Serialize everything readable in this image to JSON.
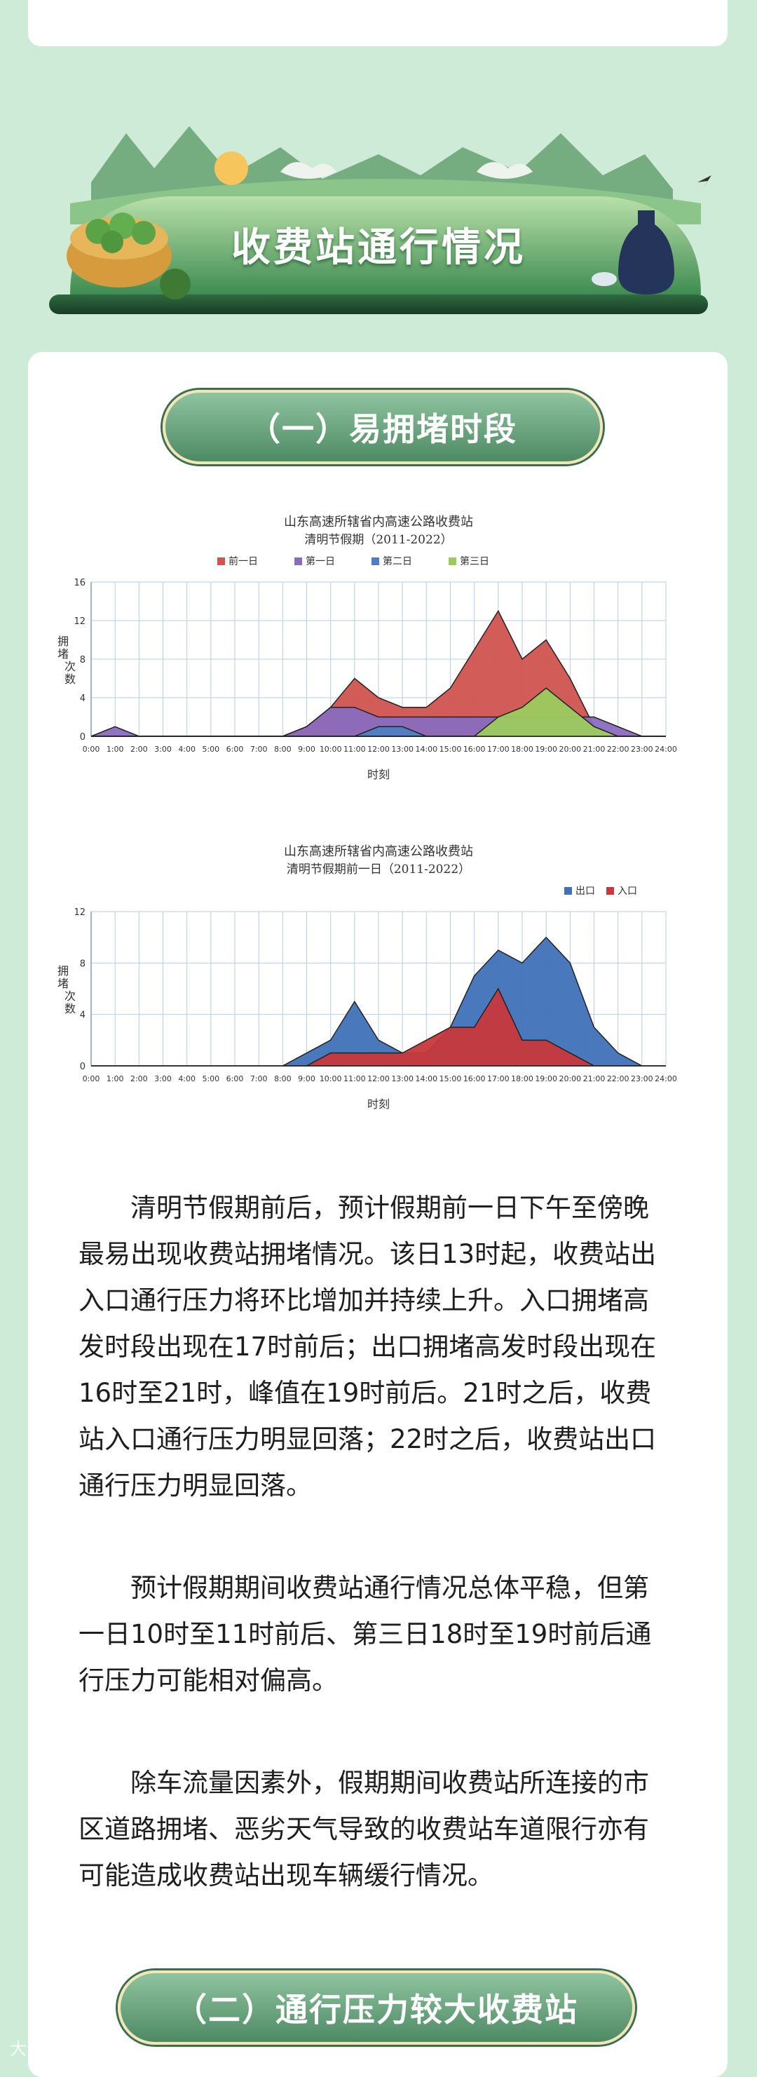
{
  "section": {
    "title": "收费站通行情况"
  },
  "subsections": [
    {
      "label": "（一）易拥堵时段"
    },
    {
      "label": "（二）通行压力较大收费站"
    }
  ],
  "paragraphs": [
    "清明节假期前后，预计假期前一日下午至傍晚最易出现收费站拥堵情况。该日13时起，收费站出入口通行压力将环比增加并持续上升。入口拥堵高发时段出现在17时前后；出口拥堵高发时段出现在16时至21时，峰值在19时前后。21时之后，收费站入口通行压力明显回落；22时之后，收费站出口通行压力明显回落。",
    "预计假期期间收费站通行情况总体平稳，但第一日10时至11时前后、第三日18时至19时前后通行压力可能相对偏高。",
    "除车流量因素外，假期期间收费站所连接的市区道路拥堵、恶劣天气导致的收费站车道限行亦有可能造成收费站出现车辆缓行情况。"
  ],
  "watermark": "大众日报",
  "chart_data": [
    {
      "type": "area",
      "title": "山东高速所辖省内高速公路收费站",
      "subtitle": "清明节假期（2011-2022）",
      "xlabel": "时刻",
      "ylabel": "拥堵次数",
      "ylim": [
        0,
        16
      ],
      "yticks": [
        0,
        4,
        8,
        12,
        16
      ],
      "legend_position": "top",
      "grid": true,
      "x": [
        "0:00",
        "1:00",
        "2:00",
        "3:00",
        "4:00",
        "5:00",
        "6:00",
        "7:00",
        "8:00",
        "9:00",
        "10:00",
        "11:00",
        "12:00",
        "13:00",
        "14:00",
        "15:00",
        "16:00",
        "17:00",
        "18:00",
        "19:00",
        "20:00",
        "21:00",
        "22:00",
        "23:00",
        "24:00"
      ],
      "series": [
        {
          "name": "前一日",
          "color": "#d0534f",
          "values": [
            0,
            0,
            0,
            0,
            0,
            0,
            0,
            0,
            0,
            1,
            3,
            6,
            4,
            3,
            3,
            5,
            9,
            13,
            8,
            10,
            6,
            1,
            0,
            0,
            0
          ]
        },
        {
          "name": "第一日",
          "color": "#8a6cbf",
          "values": [
            0,
            1,
            0,
            0,
            0,
            0,
            0,
            0,
            0,
            1,
            3,
            3,
            2,
            2,
            2,
            2,
            2,
            2,
            2,
            2,
            2,
            2,
            1,
            0,
            0
          ]
        },
        {
          "name": "第二日",
          "color": "#4d80c0",
          "values": [
            0,
            0,
            0,
            0,
            0,
            0,
            0,
            0,
            0,
            0,
            0,
            0,
            1,
            1,
            0,
            0,
            0,
            0,
            0,
            0,
            0,
            0,
            0,
            0,
            0
          ]
        },
        {
          "name": "第三日",
          "color": "#9ccb5e",
          "values": [
            0,
            0,
            0,
            0,
            0,
            0,
            0,
            0,
            0,
            0,
            0,
            0,
            0,
            0,
            0,
            0,
            0,
            2,
            3,
            5,
            3,
            1,
            0,
            0,
            0
          ]
        }
      ]
    },
    {
      "type": "area",
      "title": "山东高速所辖省内高速公路收费站",
      "subtitle": "清明节假期前一日（2011-2022）",
      "xlabel": "时刻",
      "ylabel": "拥堵次数",
      "ylim": [
        0,
        12
      ],
      "yticks": [
        0,
        4,
        8,
        12
      ],
      "legend_position": "top-right",
      "grid": true,
      "x": [
        "0:00",
        "1:00",
        "2:00",
        "3:00",
        "4:00",
        "5:00",
        "6:00",
        "7:00",
        "8:00",
        "9:00",
        "10:00",
        "11:00",
        "12:00",
        "13:00",
        "14:00",
        "15:00",
        "16:00",
        "17:00",
        "18:00",
        "19:00",
        "20:00",
        "21:00",
        "22:00",
        "23:00",
        "24:00"
      ],
      "series": [
        {
          "name": "出口",
          "color": "#3f72b8",
          "values": [
            0,
            0,
            0,
            0,
            0,
            0,
            0,
            0,
            0,
            1,
            2,
            5,
            2,
            1,
            1,
            3,
            7,
            9,
            8,
            10,
            8,
            3,
            1,
            0,
            0
          ]
        },
        {
          "name": "入口",
          "color": "#c8383c",
          "values": [
            0,
            0,
            0,
            0,
            0,
            0,
            0,
            0,
            0,
            0,
            1,
            1,
            1,
            1,
            2,
            3,
            3,
            6,
            2,
            2,
            1,
            0,
            0,
            0,
            0
          ]
        }
      ]
    }
  ]
}
